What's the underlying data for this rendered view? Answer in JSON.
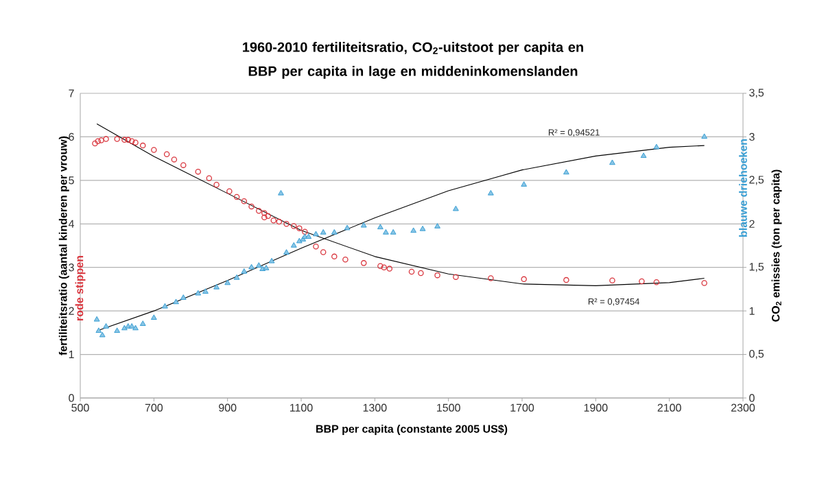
{
  "chart_data": {
    "type": "scatter",
    "title": "1960-2010 fertiliteitsratio, CO$_{2}$-uitstoot per capita en BBP per capita in lage en middeninkomenslanden",
    "xlabel": "BBP per capita (constante 2005 US$)",
    "ylabel": "fertiliteitsratio (aantal kinderen per vrouw)",
    "y2label": "CO$_{2}$ emissies (ton per capita)",
    "xlim": [
      500,
      2300
    ],
    "xticks": [
      500,
      700,
      900,
      1100,
      1300,
      1500,
      1700,
      1900,
      2100,
      2300
    ],
    "ylim": [
      0,
      7
    ],
    "yticks": [
      0,
      1,
      2,
      3,
      4,
      5,
      6,
      7
    ],
    "y2lim": [
      0,
      3.5
    ],
    "y2ticks": [
      0,
      {
        "value": 0.5,
        "label": "0,5"
      },
      1,
      {
        "value": 1.5,
        "label": "1,5"
      },
      2,
      {
        "value": 2.5,
        "label": "2,5"
      },
      3,
      {
        "value": 3.5,
        "label": "3,5"
      }
    ],
    "grid": "y",
    "annotations": [
      "R² = 0,94521",
      "R² = 0,97454"
    ],
    "series": [
      {
        "name": "rode stippen",
        "type": "scatter",
        "marker": "circle",
        "color": "#d9363e",
        "x": [
          540,
          548,
          557,
          570,
          600,
          620,
          630,
          640,
          650,
          670,
          700,
          735,
          755,
          780,
          820,
          850,
          870,
          905,
          925,
          945,
          965,
          985,
          1000,
          1000,
          1010,
          1025,
          1040,
          1060,
          1080,
          1095,
          1110,
          1140,
          1160,
          1190,
          1220,
          1270,
          1315,
          1325,
          1340,
          1400,
          1425,
          1470,
          1520,
          1615,
          1705,
          1820,
          1945,
          2025,
          2065,
          2195
        ],
        "values": [
          5.85,
          5.9,
          5.92,
          5.95,
          5.95,
          5.93,
          5.93,
          5.9,
          5.87,
          5.8,
          5.7,
          5.6,
          5.48,
          5.35,
          5.2,
          5.05,
          4.9,
          4.75,
          4.62,
          4.52,
          4.4,
          4.3,
          4.25,
          4.15,
          4.18,
          4.08,
          4.05,
          4.0,
          3.95,
          3.9,
          3.82,
          3.48,
          3.35,
          3.25,
          3.18,
          3.1,
          3.03,
          3.0,
          2.97,
          2.9,
          2.87,
          2.82,
          2.78,
          2.75,
          2.73,
          2.71,
          2.7,
          2.68,
          2.66,
          2.64
        ]
      },
      {
        "name": "blauwe driehoeken",
        "type": "scatter",
        "marker": "triangle",
        "axis": "y2",
        "color": "#3a9fd4",
        "x": [
          545,
          550,
          560,
          570,
          600,
          620,
          630,
          640,
          650,
          670,
          700,
          730,
          760,
          780,
          820,
          840,
          870,
          900,
          925,
          945,
          965,
          985,
          995,
          1005,
          1020,
          1045,
          1060,
          1080,
          1095,
          1105,
          1110,
          1120,
          1140,
          1160,
          1190,
          1225,
          1270,
          1315,
          1330,
          1350,
          1405,
          1430,
          1470,
          1520,
          1615,
          1705,
          1820,
          1945,
          2030,
          2065,
          2195
        ],
        "values": [
          0.9,
          0.77,
          0.72,
          0.82,
          0.77,
          0.8,
          0.82,
          0.82,
          0.8,
          0.85,
          0.92,
          1.05,
          1.1,
          1.15,
          1.2,
          1.22,
          1.27,
          1.32,
          1.38,
          1.45,
          1.5,
          1.52,
          1.48,
          1.49,
          1.57,
          2.35,
          1.67,
          1.75,
          1.8,
          1.82,
          1.85,
          1.85,
          1.88,
          1.9,
          1.9,
          1.95,
          1.98,
          1.96,
          1.9,
          1.9,
          1.92,
          1.94,
          1.97,
          2.17,
          2.35,
          2.45,
          2.59,
          2.7,
          2.78,
          2.88,
          3.0
        ]
      },
      {
        "type": "line",
        "marker": "none",
        "line_style": "solid",
        "color": "#000000",
        "x": [
          545,
          700,
          900,
          1100,
          1300,
          1500,
          1700,
          1900,
          2100,
          2195
        ],
        "values": [
          6.3,
          5.55,
          4.7,
          3.85,
          3.25,
          2.85,
          2.62,
          2.58,
          2.65,
          2.75
        ]
      },
      {
        "type": "line",
        "marker": "none",
        "line_style": "solid",
        "axis": "y2",
        "color": "#000000",
        "x": [
          545,
          700,
          900,
          1100,
          1300,
          1500,
          1700,
          1900,
          2100,
          2195
        ],
        "values": [
          0.77,
          1.0,
          1.35,
          1.72,
          2.07,
          2.38,
          2.62,
          2.78,
          2.88,
          2.9
        ]
      }
    ]
  }
}
